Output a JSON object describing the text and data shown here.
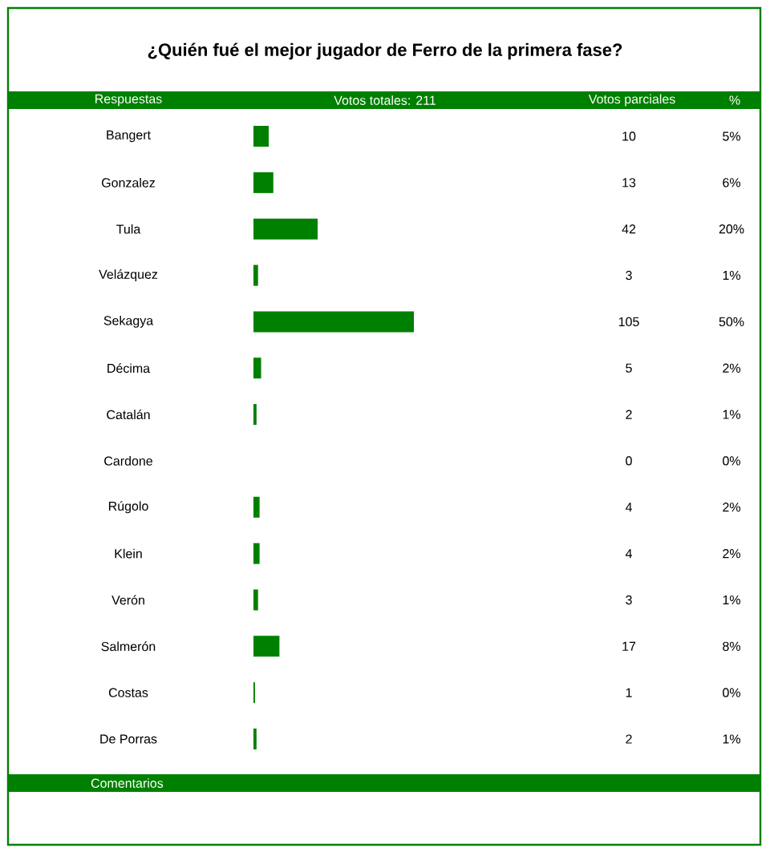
{
  "chart_data": {
    "type": "bar",
    "orientation": "horizontal",
    "title": "¿Quién fué el mejor jugador de Ferro de la primera fase?",
    "ylabel": "Respuestas",
    "xlabel": "Votos totales: 211",
    "categories": [
      "Bangert",
      "Gonzalez",
      "Tula",
      "Velázquez",
      "Sekagya",
      "Décima",
      "Catalán",
      "Cardone",
      "Rúgolo",
      "Klein",
      "Verón",
      "Salmerón",
      "Costas",
      "De Porras"
    ],
    "values": [
      10,
      13,
      42,
      3,
      105,
      5,
      2,
      0,
      4,
      4,
      3,
      17,
      1,
      2
    ],
    "color": "#008000",
    "data_labels": true,
    "annotations": [
      "Votos parciales",
      "%",
      "5%",
      "6%",
      "20%",
      "1%",
      "50%",
      "2%",
      "1%",
      "0%",
      "2%",
      "2%",
      "1%",
      "8%",
      "0%",
      "1%",
      "Comentarios"
    ]
  }
}
